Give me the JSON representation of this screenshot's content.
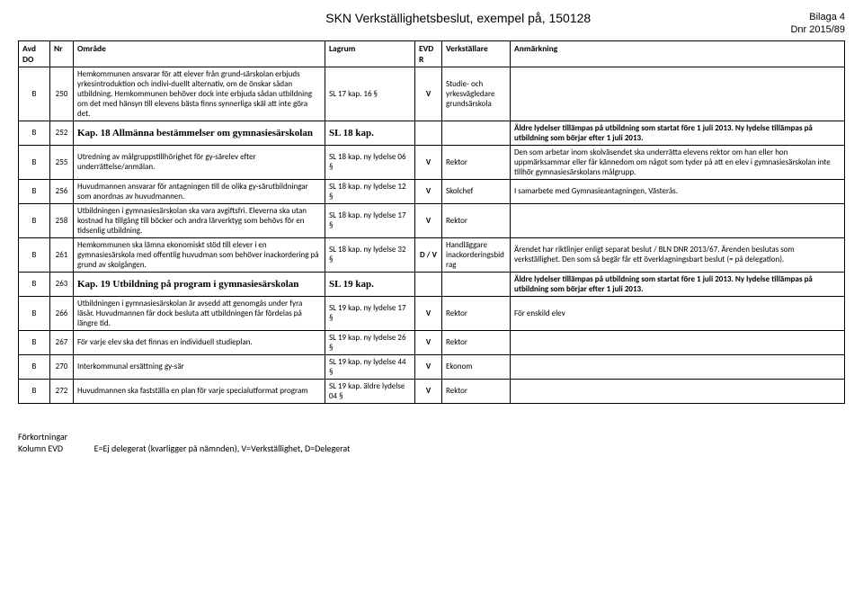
{
  "header": {
    "title": "SKN Verkställighetsbeslut, exempel på, 150128",
    "bilaga": "Bilaga 4",
    "dnr": "Dnr 2015/89"
  },
  "columns": [
    "Avd DO",
    "Nr",
    "Område",
    "Lagrum",
    "EVDR",
    "Verkställare",
    "Anmärkning"
  ],
  "rows": [
    {
      "avd": "B",
      "nr": "250",
      "omrade": "Hemkommunen ansvarar för att elever från grund-särskolan erbjuds yrkesintroduktion och indivi-duellt alternativ, om de önskar sådan utbildning. Hemkommunen behöver dock inte erbjuda sådan utbildning om det med hänsyn till elevens bästa finns synnerliga skäl att inte göra det.",
      "lagrum": "SL 17 kap. 16 §",
      "evdr": "V",
      "verk": "Studie- och yrkesvägledare grundsärskola",
      "anm": ""
    },
    {
      "avd": "B",
      "nr": "252",
      "omrade": "Kap. 18 Allmänna bestämmelser om gymnasiesärskolan",
      "lagrum": "SL 18 kap.",
      "evdr": "",
      "verk": "",
      "anm": "Äldre lydelser tillämpas på utbildning som startat före 1 juli 2013.  Ny lydelse tillämpas på utbildning som börjar efter 1 juli 2013.",
      "is_section": true
    },
    {
      "avd": "B",
      "nr": "255",
      "omrade": "Utredning av målgruppstillhörighet för gy-särelev efter underrättelse/anmälan.",
      "lagrum": "SL 18 kap. ny lydelse 06 §",
      "evdr": "V",
      "verk": "Rektor",
      "anm": "Den som arbetar inom skolväsendet ska underrätta elevens rektor om han eller hon uppmärksammar eller får kännedom om något som tyder på att en elev i gymnasiesärskolan inte tillhör gymnasiesärskolans målgrupp."
    },
    {
      "avd": "B",
      "nr": "256",
      "omrade": "Huvudmannen ansvarar för antagningen till de olika gy-särutbildningar som anordnas av huvudmannen.",
      "lagrum": "SL 18 kap. ny lydelse 12 §",
      "evdr": "V",
      "verk": "Skolchef",
      "anm": "I samarbete med Gymnasieantagningen, Västerås."
    },
    {
      "avd": "B",
      "nr": "258",
      "omrade": "Utbildningen i gymnasiesärskolan ska vara avgiftsfri. Eleverna ska utan kostnad ha tillgång till böcker och andra lärverktyg som behövs för en tidsenlig utbildning.",
      "lagrum": "SL 18 kap. ny lydelse 17 §",
      "evdr": "V",
      "verk": "Rektor",
      "anm": ""
    },
    {
      "avd": "B",
      "nr": "261",
      "omrade": "Hemkommunen ska lämna ekonomiskt stöd till elever i en gymnasiesärskola med offentlig huvudman som behöver inackordering på grund av skolgången.",
      "lagrum": "SL 18 kap. ny lydelse 32 §",
      "evdr": "D / V",
      "verk": "Handläggare inackorderingsbidrag",
      "anm": "Ärendet har riktlinjer enligt separat beslut / BLN DNR 2013/67. Ärenden beslutas som verkställighet. Den som så begär får ett överklagningsbart beslut (= på delegation)."
    },
    {
      "avd": "B",
      "nr": "263",
      "omrade": "Kap. 19 Utbildning på program i gymnasiesärskolan",
      "lagrum": "SL 19 kap.",
      "evdr": "",
      "verk": "",
      "anm": "Äldre lydelser tillämpas på utbildning som startat före 1 juli 2013.  Ny lydelse tillämpas på utbildning som börjar efter 1 juli 2013.",
      "is_section": true
    },
    {
      "avd": "B",
      "nr": "266",
      "omrade": "Utbildningen i gymnasiesärskolan är avsedd att genomgås under fyra läsår. Huvudmannen får dock besluta att utbildningen får fördelas på längre tid.",
      "lagrum": "SL 19 kap. ny lydelse 17 §",
      "evdr": "V",
      "verk": "Rektor",
      "anm": "För enskild elev"
    },
    {
      "avd": "B",
      "nr": "267",
      "omrade": "För varje elev ska det finnas  en individuell studieplan.",
      "lagrum": "SL 19 kap. ny lydelse 26 §",
      "evdr": "V",
      "verk": "Rektor",
      "anm": ""
    },
    {
      "avd": "B",
      "nr": "270",
      "omrade": "Interkommunal ersättning gy-sär",
      "lagrum": "SL 19 kap. ny lydelse 44 §",
      "evdr": "V",
      "verk": "Ekonom",
      "anm": ""
    },
    {
      "avd": "B",
      "nr": "272",
      "omrade": "Huvudmannen ska fastställa en plan för varje specialutformat program",
      "lagrum": "SL 19 kap. äldre lydelse 04 §",
      "evdr": "V",
      "verk": "Rektor",
      "anm": ""
    }
  ],
  "footer": {
    "line1": "Förkortningar",
    "line2_label": "Kolumn EVD",
    "line2_text": "E=Ej delegerat (kvarligger på nämnden), V=Verkställighet, D=Delegerat"
  }
}
